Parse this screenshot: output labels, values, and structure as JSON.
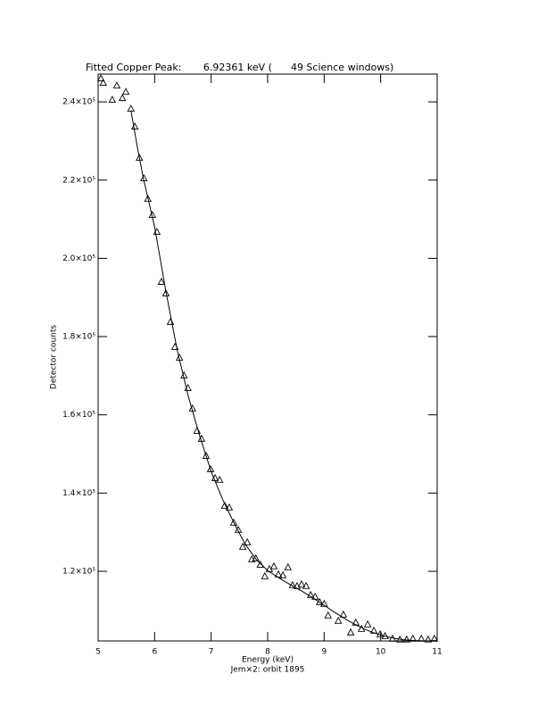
{
  "chart_data": {
    "type": "scatter",
    "title": "Fitted Copper Peak:       6.92361 keV (      49 Science windows)",
    "xlabel": "Energy (keV)",
    "subtitle": "Jem×2: orbit 1895",
    "ylabel": "Detector counts",
    "xlim": [
      5,
      11
    ],
    "xticks": [
      5,
      6,
      7,
      8,
      9,
      10,
      11
    ],
    "ylim": [
      102200,
      247100
    ],
    "yticks": [
      {
        "value": 120000,
        "label": "1.2×10⁵"
      },
      {
        "value": 140000,
        "label": "1.4×10⁵"
      },
      {
        "value": 160000,
        "label": "1.6×10⁵"
      },
      {
        "value": 180000,
        "label": "1.8×10⁵"
      },
      {
        "value": 200000,
        "label": "2.0×10⁵"
      },
      {
        "value": 220000,
        "label": "2.2×10⁵"
      },
      {
        "value": 240000,
        "label": "2.4×10⁵"
      }
    ],
    "series": [
      {
        "marker": "triangle",
        "color": "#000000",
        "x": [
          5.05,
          5.09,
          5.25,
          5.33,
          5.43,
          5.49,
          5.58,
          5.65,
          5.73,
          5.81,
          5.88,
          5.96,
          6.04,
          6.12,
          6.2,
          6.28,
          6.36,
          6.44,
          6.52,
          6.59,
          6.67,
          6.75,
          6.83,
          6.91,
          6.99,
          7.07,
          7.15,
          7.24,
          7.32,
          7.4,
          7.48,
          7.56,
          7.64,
          7.72,
          7.79,
          7.87,
          7.95,
          8.03,
          8.11,
          8.19,
          8.27,
          8.36,
          8.44,
          8.52,
          8.6,
          8.68,
          8.76,
          8.84,
          8.92,
          9.0,
          9.07,
          9.25,
          9.34,
          9.47,
          9.56,
          9.66,
          9.77,
          9.88,
          9.99,
          10.08,
          10.21,
          10.34,
          10.46,
          10.57,
          10.72,
          10.84,
          10.95
        ],
        "values": [
          245930,
          244790,
          240460,
          244100,
          240910,
          242500,
          238180,
          233610,
          225630,
          220390,
          215140,
          211040,
          206700,
          193930,
          190970,
          183670,
          177290,
          174550,
          169990,
          166800,
          161550,
          155850,
          153800,
          149460,
          146040,
          143760,
          143310,
          136690,
          136240,
          132360,
          130540,
          126200,
          127340,
          123010,
          123240,
          121600,
          118680,
          120500,
          121200,
          119140,
          118910,
          120960,
          116400,
          116170,
          116620,
          116170,
          113890,
          113430,
          112070,
          111610,
          108640,
          107270,
          108870,
          104310,
          106820,
          105220,
          106360,
          104760,
          103850,
          103390,
          102710,
          102490,
          102490,
          102710,
          102710,
          102490,
          102710
        ]
      },
      {
        "marker": "line",
        "color": "#000000",
        "x": [
          5.58,
          5.7,
          5.8,
          6.0,
          6.2,
          6.4,
          6.6,
          6.8,
          7.0,
          7.2,
          7.4,
          7.6,
          7.8,
          8.0,
          8.2,
          8.4,
          8.6,
          8.8,
          9.0,
          9.2,
          9.4,
          9.6,
          9.8,
          10.0,
          10.2,
          10.4,
          10.6,
          10.8,
          11.0
        ],
        "values": [
          237800,
          228000,
          220500,
          208000,
          191500,
          176500,
          164500,
          154500,
          145500,
          138500,
          132500,
          127000,
          123000,
          120200,
          118300,
          116600,
          115000,
          113200,
          111300,
          109400,
          107600,
          106000,
          104700,
          103700,
          103000,
          102500,
          102300,
          102200,
          102300
        ]
      }
    ]
  }
}
